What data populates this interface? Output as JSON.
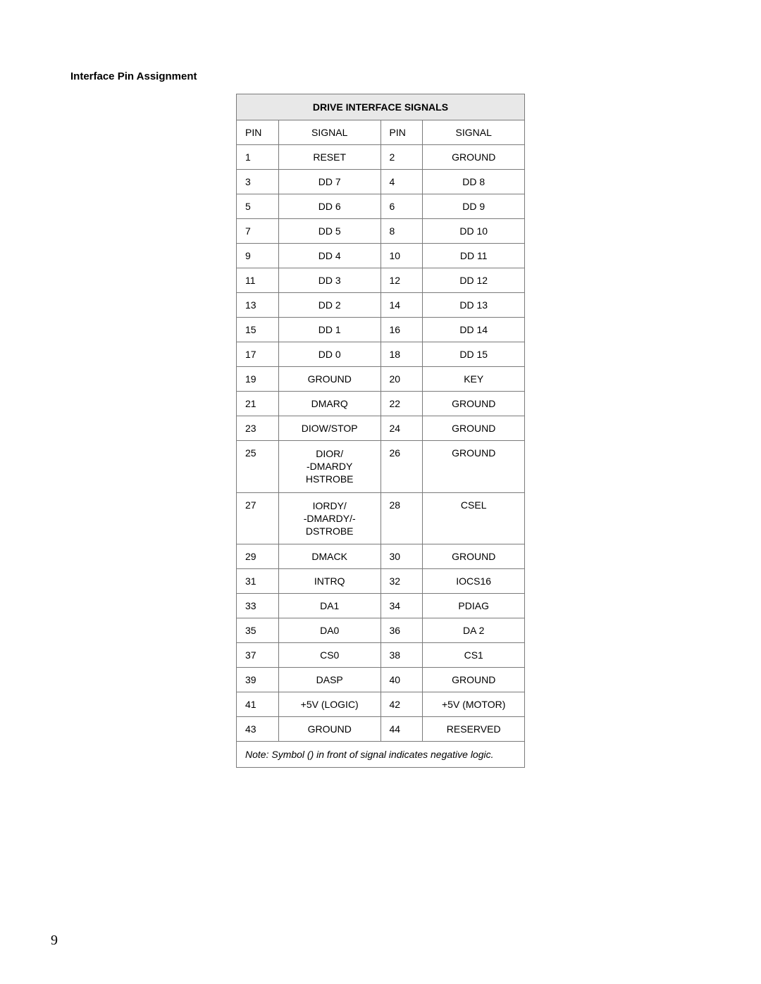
{
  "section_title": "Interface Pin Assignment",
  "table": {
    "title": "DRIVE INTERFACE SIGNALS",
    "columns": [
      "PIN",
      "SIGNAL",
      "PIN",
      "SIGNAL"
    ],
    "rows": [
      {
        "pin_a": "1",
        "sig_a": "RESET",
        "pin_b": "2",
        "sig_b": "GROUND"
      },
      {
        "pin_a": "3",
        "sig_a": "DD 7",
        "pin_b": "4",
        "sig_b": "DD 8"
      },
      {
        "pin_a": "5",
        "sig_a": "DD 6",
        "pin_b": "6",
        "sig_b": "DD 9"
      },
      {
        "pin_a": "7",
        "sig_a": "DD 5",
        "pin_b": "8",
        "sig_b": "DD 10"
      },
      {
        "pin_a": "9",
        "sig_a": "DD 4",
        "pin_b": "10",
        "sig_b": "DD 11"
      },
      {
        "pin_a": "11",
        "sig_a": "DD 3",
        "pin_b": "12",
        "sig_b": "DD 12"
      },
      {
        "pin_a": "13",
        "sig_a": "DD 2",
        "pin_b": "14",
        "sig_b": "DD 13"
      },
      {
        "pin_a": "15",
        "sig_a": "DD 1",
        "pin_b": "16",
        "sig_b": "DD 14"
      },
      {
        "pin_a": "17",
        "sig_a": "DD 0",
        "pin_b": "18",
        "sig_b": "DD 15"
      },
      {
        "pin_a": "19",
        "sig_a": "GROUND",
        "pin_b": "20",
        "sig_b": "KEY"
      },
      {
        "pin_a": "21",
        "sig_a": "DMARQ",
        "pin_b": "22",
        "sig_b": "GROUND"
      },
      {
        "pin_a": "23",
        "sig_a": "DIOW/STOP",
        "pin_b": "24",
        "sig_b": "GROUND"
      },
      {
        "pin_a": "25",
        "sig_a": "DIOR/\n-DMARDY\nHSTROBE",
        "pin_b": "26",
        "sig_b": "GROUND"
      },
      {
        "pin_a": "27",
        "sig_a": "IORDY/\n-DMARDY/-\nDSTROBE",
        "pin_b": "28",
        "sig_b": "CSEL"
      },
      {
        "pin_a": "29",
        "sig_a": "DMACK",
        "pin_b": "30",
        "sig_b": "GROUND"
      },
      {
        "pin_a": "31",
        "sig_a": "INTRQ",
        "pin_b": "32",
        "sig_b": "IOCS16"
      },
      {
        "pin_a": "33",
        "sig_a": "DA1",
        "pin_b": "34",
        "sig_b": "PDIAG"
      },
      {
        "pin_a": "35",
        "sig_a": "DA0",
        "pin_b": "36",
        "sig_b": "DA 2"
      },
      {
        "pin_a": "37",
        "sig_a": "CS0",
        "pin_b": "38",
        "sig_b": "CS1"
      },
      {
        "pin_a": "39",
        "sig_a": "DASP",
        "pin_b": "40",
        "sig_b": "GROUND"
      },
      {
        "pin_a": "41",
        "sig_a": "+5V (LOGIC)",
        "pin_b": "42",
        "sig_b": "+5V (MOTOR)"
      },
      {
        "pin_a": "43",
        "sig_a": "GROUND",
        "pin_b": "44",
        "sig_b": "RESERVED"
      }
    ],
    "note": "Note: Symbol () in front of signal indicates negative logic."
  },
  "page_number": "9",
  "colors": {
    "background": "#ffffff",
    "header_bg": "#e8e8e8",
    "border": "#7a7a7a",
    "text": "#000000"
  }
}
